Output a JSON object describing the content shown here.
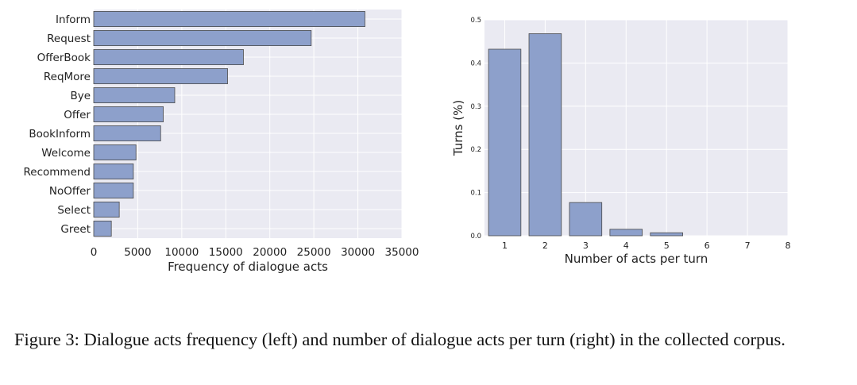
{
  "chart_data": [
    {
      "type": "bar",
      "orientation": "horizontal",
      "categories": [
        "Inform",
        "Request",
        "OfferBook",
        "ReqMore",
        "Bye",
        "Offer",
        "BookInform",
        "Welcome",
        "Recommend",
        "NoOffer",
        "Select",
        "Greet"
      ],
      "values": [
        30800,
        24700,
        17000,
        15200,
        9200,
        7900,
        7600,
        4800,
        4500,
        4500,
        2900,
        2000
      ],
      "xlabel": "Frequency of dialogue acts",
      "ylabel": "",
      "xlim": [
        0,
        35000
      ],
      "xticks": [
        "0",
        "5000",
        "10000",
        "15000",
        "20000",
        "25000",
        "30000",
        "35000"
      ],
      "grid": true,
      "bar_color": "#8da0cb"
    },
    {
      "type": "bar",
      "categories": [
        "1",
        "2",
        "3",
        "4",
        "5"
      ],
      "values": [
        0.432,
        0.468,
        0.077,
        0.015,
        0.007
      ],
      "xlabel": "Number of acts per turn",
      "ylabel": "Turns (%)",
      "xlim": [
        0.5,
        8
      ],
      "ylim": [
        0.0,
        0.5
      ],
      "xticks": [
        "1",
        "2",
        "3",
        "4",
        "5",
        "6",
        "7",
        "8"
      ],
      "yticks": [
        "0.0",
        "0.1",
        "0.2",
        "0.3",
        "0.4",
        "0.5"
      ],
      "grid": true,
      "bar_color": "#8da0cb"
    }
  ],
  "caption": "Figure 3:  Dialogue acts frequency (left) and number of dialogue acts per turn (right) in the collected corpus."
}
